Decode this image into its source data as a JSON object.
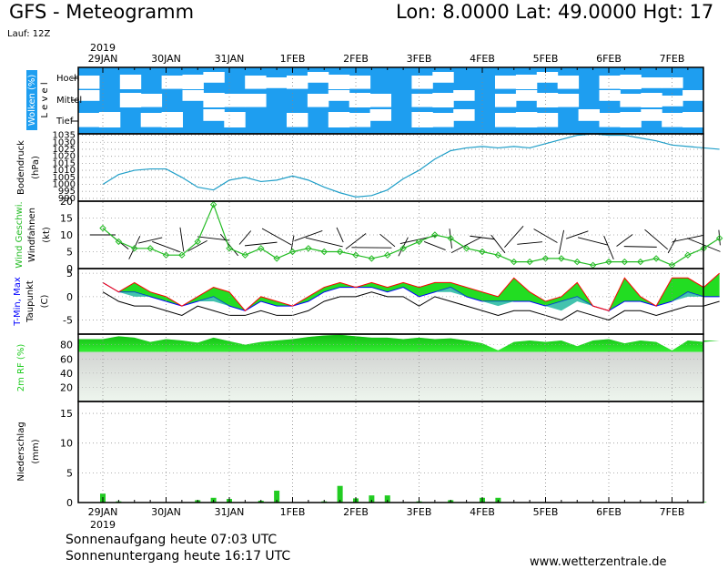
{
  "header": {
    "title": "GFS - Meteogramm",
    "location": "Lon: 8.0000  Lat: 49.0000  Hgt: 17",
    "run": "Lauf: 12Z"
  },
  "time_axis": {
    "year": "2019",
    "dates": [
      "29JAN",
      "30JAN",
      "31JAN",
      "1FEB",
      "2FEB",
      "3FEB",
      "4FEB",
      "5FEB",
      "6FEB",
      "7FEB"
    ]
  },
  "footer": {
    "sunrise": "Sonnenaufgang heute 07:03 UTC",
    "sunset": "Sonnenuntergang heute 16:17 UTC",
    "site": "www.wetterzentrale.de"
  },
  "colors": {
    "cloud_sky": "#1e9ef0",
    "cloud": "#ffffff",
    "pressure": "#1e9ec8",
    "wind": "#22bb22",
    "tmin": "#0000ff",
    "tmax": "#ff0000",
    "warm_fill": "#22dd22",
    "cold_fill": "#22b8a0",
    "humidity": "#22cc22",
    "precip": "#22cc22"
  },
  "chart_data": [
    {
      "type": "heatmap",
      "panel": "clouds",
      "ylabel": "Wolken (%)",
      "ylabel2": "L e v e l",
      "levels": [
        "Hoch",
        "Mittel",
        "Tief"
      ],
      "coverage_high": [
        60,
        40,
        80,
        40,
        60,
        80,
        70,
        40,
        60,
        90,
        60,
        70,
        80,
        60,
        50,
        40,
        60,
        70,
        50,
        40,
        60,
        80,
        70,
        60,
        40,
        60,
        80,
        90,
        90,
        40
      ],
      "coverage_mid": [
        70,
        50,
        80,
        60,
        40,
        70,
        80,
        60,
        60,
        40,
        30,
        60,
        70,
        80,
        60,
        40,
        60,
        80,
        70,
        50,
        60,
        70,
        80,
        60,
        50,
        70,
        60,
        80,
        90,
        70
      ],
      "coverage_low": [
        60,
        80,
        50,
        60,
        80,
        40,
        70,
        80,
        50,
        40,
        60,
        40,
        80,
        60,
        70,
        50,
        80,
        60,
        70,
        40,
        60,
        80,
        60,
        40,
        70,
        60,
        80,
        70,
        60,
        80
      ]
    },
    {
      "type": "line",
      "panel": "pressure",
      "ylabel": "Bodendruck",
      "ylabel2": "(hPa)",
      "yticks": [
        990,
        995,
        1000,
        1005,
        1010,
        1015,
        1020,
        1025,
        1030,
        1035
      ],
      "ylim": [
        988,
        1036
      ],
      "x": [
        0,
        0.25,
        0.5,
        0.75,
        1,
        1.25,
        1.5,
        1.75,
        2,
        2.25,
        2.5,
        2.75,
        3,
        3.25,
        3.5,
        3.75,
        4,
        4.25,
        4.5,
        4.75,
        5,
        5.25,
        5.5,
        5.75,
        6,
        6.25,
        6.5,
        6.75,
        7,
        7.25,
        7.5,
        7.75,
        8,
        8.25,
        8.5,
        8.75,
        9,
        9.25,
        9.5,
        9.75
      ],
      "values": [
        1000,
        1007,
        1010,
        1011,
        1011,
        1005,
        998,
        996,
        1003,
        1005,
        1002,
        1003,
        1006,
        1003,
        998,
        994,
        991,
        992,
        996,
        1004,
        1010,
        1018,
        1024,
        1026,
        1027,
        1026,
        1027,
        1026,
        1029,
        1032,
        1035,
        1036,
        1035,
        1035,
        1033,
        1031,
        1028,
        1027,
        1026,
        1025
      ]
    },
    {
      "type": "line",
      "panel": "wind",
      "ylabel": "Wind Geschwi.",
      "ylabel2": "Windfahnen",
      "ylabel3": "(kt)",
      "yticks": [
        0,
        5,
        10,
        15,
        20
      ],
      "ylim": [
        0,
        20
      ],
      "x": [
        0,
        0.25,
        0.5,
        0.75,
        1,
        1.25,
        1.5,
        1.75,
        2,
        2.25,
        2.5,
        2.75,
        3,
        3.25,
        3.5,
        3.75,
        4,
        4.25,
        4.5,
        4.75,
        5,
        5.25,
        5.5,
        5.75,
        6,
        6.25,
        6.5,
        6.75,
        7,
        7.25,
        7.5,
        7.75,
        8,
        8.25,
        8.5,
        8.75,
        9,
        9.25,
        9.5,
        9.75
      ],
      "values": [
        12,
        8,
        6,
        6,
        4,
        4,
        8,
        19,
        6,
        4,
        6,
        3,
        5,
        6,
        5,
        5,
        4,
        3,
        4,
        6,
        8,
        10,
        9,
        6,
        5,
        4,
        2,
        2,
        3,
        3,
        2,
        1,
        2,
        2,
        2,
        3,
        1,
        4,
        6,
        9
      ]
    },
    {
      "type": "area",
      "panel": "temperature",
      "ylabel": "T-Min, Max",
      "ylabel2": "Taupunkt",
      "ylabel3": "(C)",
      "yticks": [
        -5,
        0,
        5
      ],
      "ylim": [
        -8,
        6
      ],
      "x": [
        0,
        0.25,
        0.5,
        0.75,
        1,
        1.25,
        1.5,
        1.75,
        2,
        2.25,
        2.5,
        2.75,
        3,
        3.25,
        3.5,
        3.75,
        4,
        4.25,
        4.5,
        4.75,
        5,
        5.25,
        5.5,
        5.75,
        6,
        6.25,
        6.5,
        6.75,
        7,
        7.25,
        7.5,
        7.75,
        8,
        8.25,
        8.5,
        8.75,
        9,
        9.25,
        9.5,
        9.75
      ],
      "series": [
        {
          "name": "T-Max",
          "values": [
            3,
            1,
            3,
            1,
            0,
            -2,
            0,
            2,
            1,
            -3,
            0,
            -1,
            -2,
            0,
            2,
            3,
            2,
            3,
            2,
            3,
            2,
            3,
            3,
            2,
            1,
            0,
            4,
            1,
            -1,
            0,
            3,
            -2,
            -3,
            4,
            0,
            -2,
            4,
            4,
            2,
            5
          ]
        },
        {
          "name": "T-Min",
          "values": [
            3,
            1,
            1,
            0,
            -1,
            -2,
            -1,
            0,
            -2,
            -3,
            -1,
            -2,
            -2,
            -1,
            1,
            2,
            2,
            2,
            1,
            2,
            0,
            1,
            2,
            0,
            -1,
            -1,
            -1,
            -1,
            -2,
            -1,
            0,
            -2,
            -3,
            -1,
            -1,
            -2,
            -1,
            1,
            0,
            0
          ]
        },
        {
          "name": "Taupunkt",
          "values": [
            1,
            -1,
            -2,
            -2,
            -3,
            -4,
            -2,
            -3,
            -4,
            -4,
            -3,
            -4,
            -4,
            -3,
            -1,
            0,
            0,
            1,
            0,
            0,
            -2,
            0,
            -1,
            -2,
            -3,
            -4,
            -3,
            -3,
            -4,
            -5,
            -3,
            -4,
            -5,
            -3,
            -3,
            -4,
            -3,
            -2,
            -2,
            -1
          ]
        }
      ]
    },
    {
      "type": "area",
      "panel": "humidity",
      "ylabel": "2m RF (%)",
      "yticks": [
        20,
        40,
        60,
        80
      ],
      "ylim": [
        0,
        95
      ],
      "x": [
        0,
        0.25,
        0.5,
        0.75,
        1,
        1.25,
        1.5,
        1.75,
        2,
        2.25,
        2.5,
        2.75,
        3,
        3.25,
        3.5,
        3.75,
        4,
        4.25,
        4.5,
        4.75,
        5,
        5.25,
        5.5,
        5.75,
        6,
        6.25,
        6.5,
        6.75,
        7,
        7.25,
        7.5,
        7.75,
        8,
        8.25,
        8.5,
        8.75,
        9,
        9.25,
        9.5,
        9.75
      ],
      "values": [
        88,
        92,
        90,
        84,
        88,
        86,
        83,
        90,
        85,
        80,
        84,
        86,
        88,
        91,
        93,
        94,
        92,
        90,
        90,
        88,
        90,
        88,
        89,
        86,
        82,
        72,
        84,
        86,
        84,
        86,
        78,
        86,
        88,
        82,
        86,
        84,
        72,
        86,
        84,
        86
      ]
    },
    {
      "type": "bar",
      "panel": "precipitation",
      "ylabel": "Niederschlag",
      "ylabel2": "(mm)",
      "yticks": [
        0,
        5,
        10,
        15
      ],
      "ylim": [
        0,
        17
      ],
      "x": [
        0,
        0.25,
        0.5,
        0.75,
        1,
        1.25,
        1.5,
        1.75,
        2,
        2.25,
        2.5,
        2.75,
        3,
        3.25,
        3.5,
        3.75,
        4,
        4.25,
        4.5,
        4.75,
        5,
        5.25,
        5.5,
        5.75,
        6,
        6.25,
        6.5,
        6.75,
        7,
        7.25,
        7.5,
        7.75,
        8,
        8.25,
        8.5,
        8.75,
        9,
        9.25,
        9.5,
        9.75
      ],
      "values": [
        1.5,
        0.2,
        0,
        0,
        0,
        0,
        0.4,
        0.8,
        0.6,
        0,
        0.3,
        2,
        0,
        0,
        0.2,
        2.8,
        0.7,
        1.2,
        1.2,
        0,
        0.2,
        0,
        0.4,
        0,
        0.8,
        0.8,
        0,
        0,
        0,
        0,
        0,
        0,
        0,
        0,
        0,
        0,
        0,
        0,
        0.1,
        0
      ]
    }
  ]
}
